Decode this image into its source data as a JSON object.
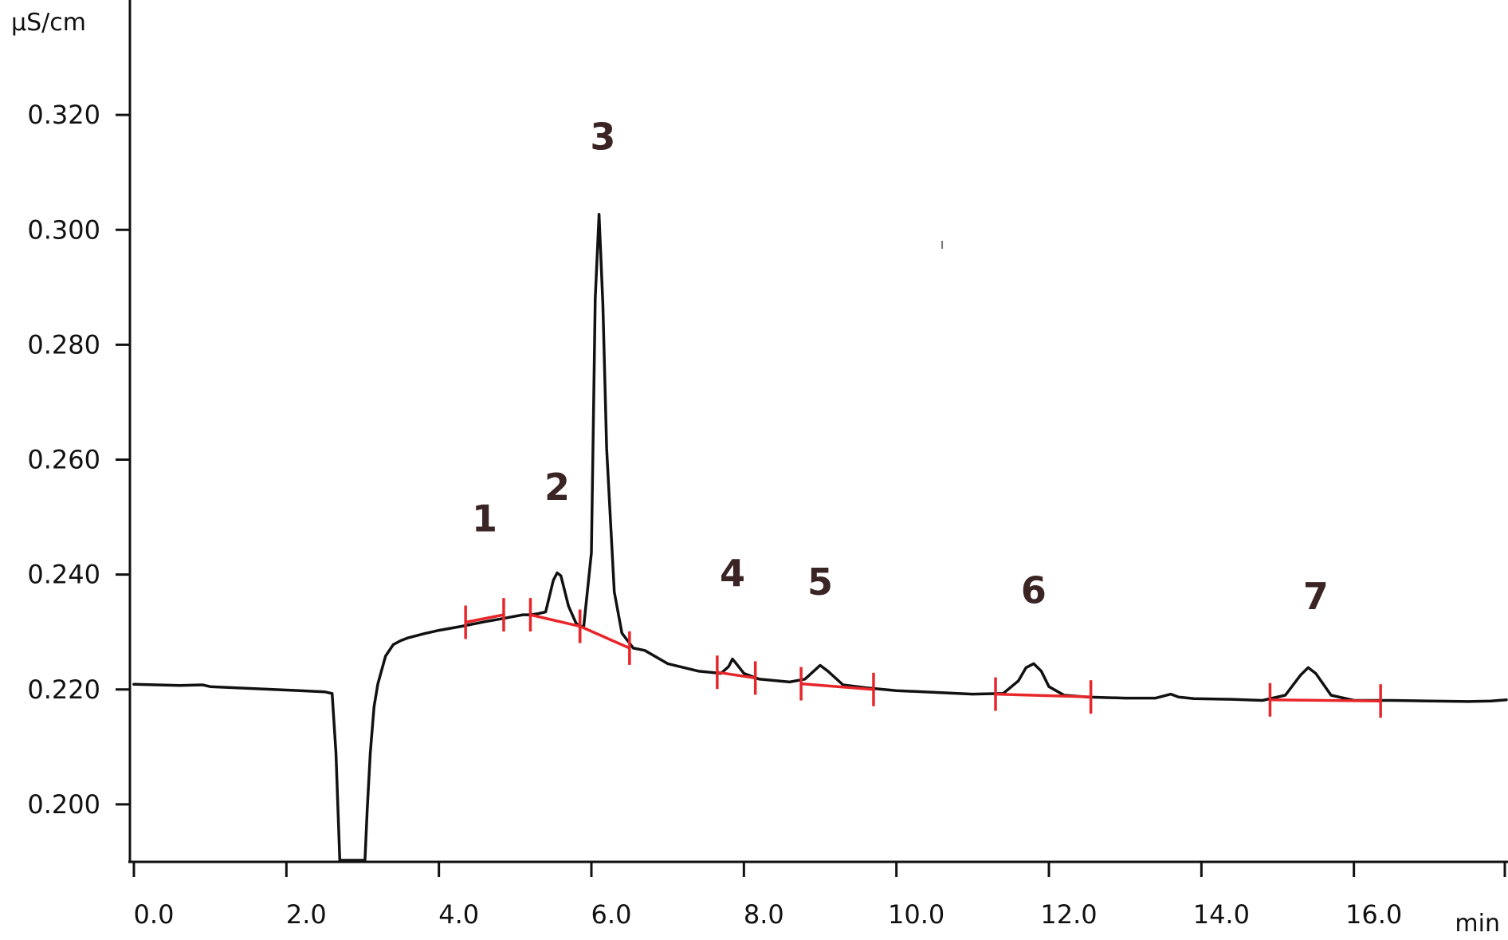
{
  "chart_data": {
    "type": "line",
    "title": "",
    "xlabel": "min",
    "ylabel": "µS/cm",
    "xlim": [
      0,
      18
    ],
    "ylim": [
      0.19,
      0.34
    ],
    "x_ticks": [
      "0.0",
      "2.0",
      "4.0",
      "6.0",
      "8.0",
      "10.0",
      "12.0",
      "14.0",
      "16.0"
    ],
    "y_ticks": [
      "0.200",
      "0.220",
      "0.240",
      "0.260",
      "0.280",
      "0.300",
      "0.320"
    ],
    "grid": false,
    "legend": "none",
    "colors": {
      "trace": "#111111",
      "baseline": "#e8262a",
      "axis": "#111111",
      "peak_label": "#3a2424"
    },
    "series": [
      {
        "x": [
          0.0,
          0.3,
          0.6,
          0.9,
          1.0,
          1.5,
          2.0,
          2.5,
          2.6,
          2.65,
          2.7,
          2.73,
          3.03,
          3.06,
          3.1,
          3.15,
          3.2,
          3.3,
          3.4,
          3.5,
          3.6,
          3.8,
          4.0,
          4.3,
          4.6,
          4.9,
          5.1,
          5.2,
          5.3,
          5.4,
          5.5,
          5.55,
          5.6,
          5.7,
          5.8,
          5.85,
          5.9,
          6.0,
          6.05,
          6.1,
          6.15,
          6.2,
          6.3,
          6.4,
          6.55,
          6.7,
          7.0,
          7.4,
          7.7,
          7.8,
          7.85,
          7.9,
          8.0,
          8.2,
          8.6,
          8.8,
          9.0,
          9.1,
          9.3,
          9.6,
          10.0,
          10.5,
          11.0,
          11.4,
          11.6,
          11.7,
          11.8,
          11.9,
          12.0,
          12.2,
          12.5,
          13.0,
          13.4,
          13.6,
          13.7,
          13.9,
          14.4,
          14.8,
          15.1,
          15.3,
          15.4,
          15.5,
          15.7,
          16.0,
          16.5,
          17.0,
          17.5,
          17.8,
          18.0
        ],
        "values": [
          0.2209,
          0.2208,
          0.2207,
          0.2208,
          0.2205,
          0.2202,
          0.2199,
          0.2196,
          0.2193,
          0.209,
          0.19,
          0.19,
          0.19,
          0.199,
          0.209,
          0.217,
          0.221,
          0.2258,
          0.2278,
          0.2285,
          0.229,
          0.2297,
          0.2303,
          0.231,
          0.2318,
          0.2325,
          0.233,
          0.233,
          0.2332,
          0.2335,
          0.239,
          0.2403,
          0.2398,
          0.2345,
          0.2315,
          0.231,
          0.231,
          0.2438,
          0.288,
          0.3027,
          0.287,
          0.262,
          0.237,
          0.2298,
          0.2272,
          0.2268,
          0.2245,
          0.2232,
          0.2228,
          0.224,
          0.2253,
          0.2245,
          0.2228,
          0.2218,
          0.2213,
          0.2218,
          0.2242,
          0.2232,
          0.2208,
          0.2203,
          0.2198,
          0.2195,
          0.2192,
          0.2193,
          0.2215,
          0.2238,
          0.2245,
          0.2232,
          0.2205,
          0.219,
          0.2187,
          0.2185,
          0.2185,
          0.2192,
          0.2187,
          0.2184,
          0.2183,
          0.2181,
          0.219,
          0.2225,
          0.2238,
          0.2228,
          0.219,
          0.2181,
          0.2181,
          0.218,
          0.2179,
          0.218,
          0.2182
        ]
      }
    ],
    "peaks": [
      {
        "label": "1",
        "apex_x": 4.6,
        "label_y": 0.2475,
        "start_x": 4.35,
        "end_x": 4.85,
        "start_y": 0.2317,
        "end_y": 0.233
      },
      {
        "label": "2",
        "apex_x": 5.55,
        "label_y": 0.253,
        "start_x": 5.2,
        "end_x": 5.85,
        "start_y": 0.233,
        "end_y": 0.231
      },
      {
        "label": "3",
        "apex_x": 6.15,
        "label_y": 0.314,
        "start_x": 5.85,
        "end_x": 6.5,
        "start_y": 0.231,
        "end_y": 0.2272
      },
      {
        "label": "4",
        "apex_x": 7.85,
        "label_y": 0.238,
        "start_x": 7.65,
        "end_x": 8.15,
        "start_y": 0.223,
        "end_y": 0.222
      },
      {
        "label": "5",
        "apex_x": 9.0,
        "label_y": 0.2365,
        "start_x": 8.75,
        "end_x": 9.7,
        "start_y": 0.221,
        "end_y": 0.22
      },
      {
        "label": "6",
        "apex_x": 11.8,
        "label_y": 0.235,
        "start_x": 11.3,
        "end_x": 12.55,
        "start_y": 0.2192,
        "end_y": 0.2187
      },
      {
        "label": "7",
        "apex_x": 15.5,
        "label_y": 0.234,
        "start_x": 14.9,
        "end_x": 16.35,
        "start_y": 0.2182,
        "end_y": 0.218
      }
    ],
    "stray_mark": {
      "x": 10.6,
      "y": 0.2974
    }
  }
}
